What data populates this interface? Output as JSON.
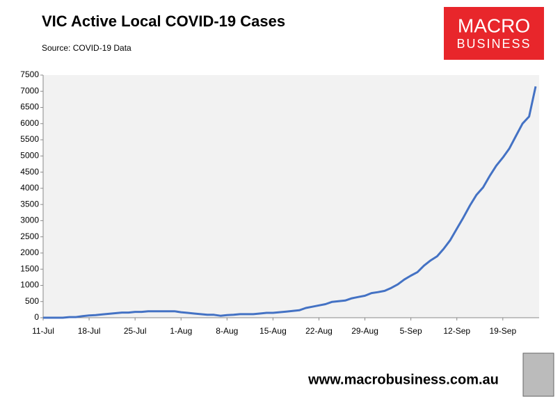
{
  "chart_data": {
    "type": "line",
    "title": "VIC Active Local COVID-19 Cases",
    "subtitle": "Source: COVID-19 Data",
    "categories": [
      "11-Jul",
      null,
      null,
      null,
      null,
      null,
      null,
      "18-Jul",
      null,
      null,
      null,
      null,
      null,
      null,
      "25-Jul",
      null,
      null,
      null,
      null,
      null,
      null,
      "1-Aug",
      null,
      null,
      null,
      null,
      null,
      null,
      "8-Aug",
      null,
      null,
      null,
      null,
      null,
      null,
      "15-Aug",
      null,
      null,
      null,
      null,
      null,
      null,
      "22-Aug",
      null,
      null,
      null,
      null,
      null,
      null,
      "29-Aug",
      null,
      null,
      null,
      null,
      null,
      null,
      "5-Sep",
      null,
      null,
      null,
      null,
      null,
      null,
      "12-Sep",
      null,
      null,
      null,
      null,
      null,
      null,
      "19-Sep",
      null,
      null,
      null,
      null,
      null
    ],
    "series": [
      {
        "name": "VIC Active Local COVID-19 Cases",
        "color": "#4472c4",
        "values": [
          0,
          0,
          0,
          0,
          20,
          20,
          50,
          70,
          80,
          100,
          120,
          140,
          160,
          160,
          180,
          180,
          200,
          200,
          200,
          200,
          200,
          170,
          150,
          130,
          110,
          90,
          90,
          60,
          80,
          90,
          110,
          110,
          110,
          130,
          150,
          150,
          170,
          190,
          210,
          230,
          300,
          340,
          380,
          420,
          490,
          510,
          530,
          600,
          640,
          680,
          760,
          790,
          830,
          920,
          1030,
          1180,
          1300,
          1410,
          1610,
          1770,
          1900,
          2130,
          2400,
          2750,
          3100,
          3470,
          3800,
          4030,
          4380,
          4700,
          4950,
          5230,
          5620,
          6000,
          6220,
          7150
        ]
      }
    ],
    "ylim": [
      0,
      7500
    ],
    "yticks": [
      0,
      500,
      1000,
      1500,
      2000,
      2500,
      3000,
      3500,
      4000,
      4500,
      5000,
      5500,
      6000,
      6500,
      7000,
      7500
    ],
    "grid": false
  },
  "logo": {
    "line1": "MACRO",
    "line2": "BUSINESS"
  },
  "footer": "www.macrobusiness.com.au"
}
